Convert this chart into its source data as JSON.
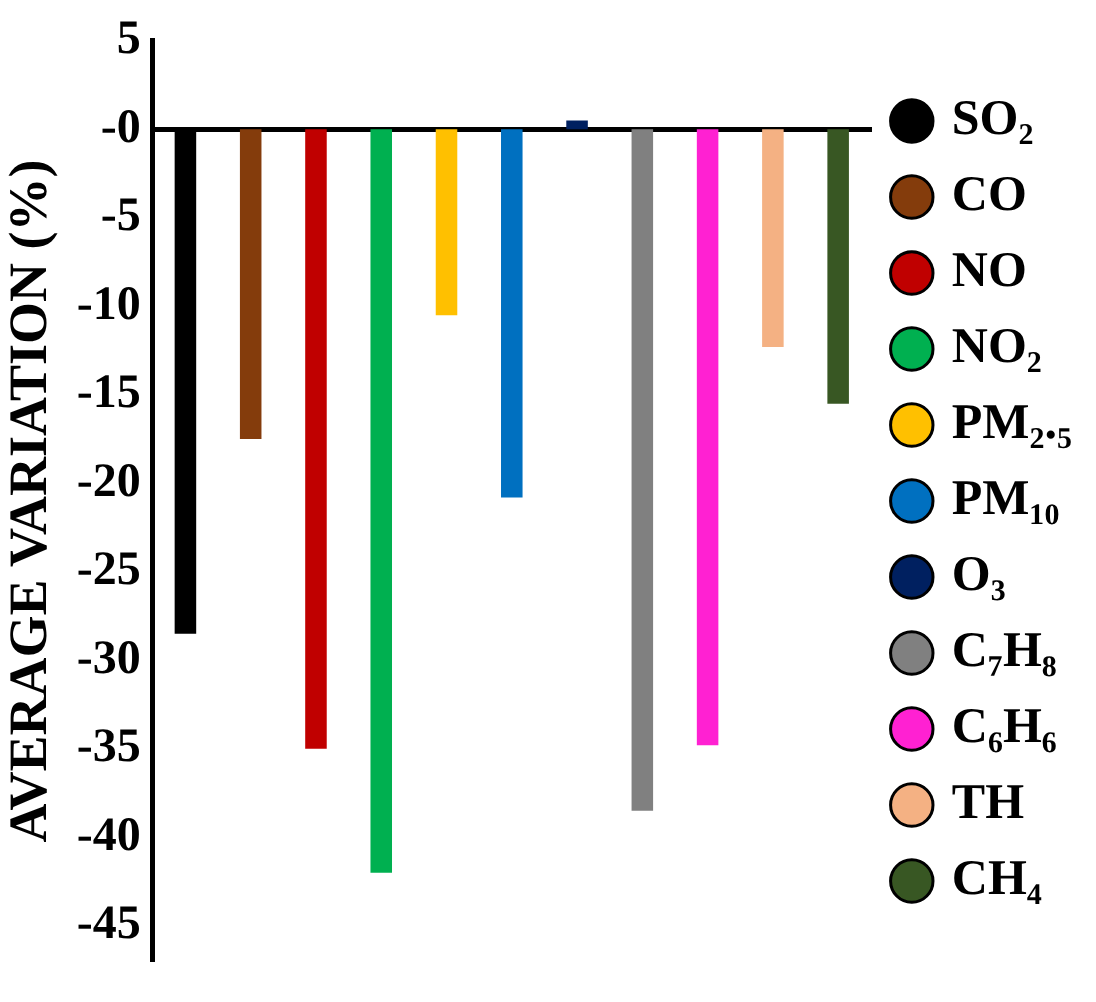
{
  "chart_data": {
    "type": "bar",
    "ylabel": "AVERAGE VARIATION (%)",
    "categories": [
      null
    ],
    "series": [
      {
        "name": "SO₂",
        "color": "#000000",
        "values": [
          -28.5
        ]
      },
      {
        "name": "CO",
        "color": "#843c0c",
        "values": [
          -17.5
        ]
      },
      {
        "name": "NO",
        "color": "#c00000",
        "values": [
          -35
        ]
      },
      {
        "name": "NO₂",
        "color": "#00b050",
        "values": [
          -42
        ]
      },
      {
        "name": "PM₂.₅",
        "color": "#ffc000",
        "values": [
          -10.5
        ]
      },
      {
        "name": "PM₁₀",
        "color": "#0070c0",
        "values": [
          -20.8
        ]
      },
      {
        "name": "O₃",
        "color": "#002060",
        "values": [
          0.5
        ]
      },
      {
        "name": "C₇H₈",
        "color": "#808080",
        "values": [
          -38.5
        ]
      },
      {
        "name": "C₆H₆",
        "color": "#ff21d2",
        "values": [
          -34.8
        ]
      },
      {
        "name": "TH",
        "color": "#f4b183",
        "values": [
          -12.3
        ]
      },
      {
        "name": "CH₄",
        "color": "#385723",
        "values": [
          -15.5
        ]
      }
    ],
    "ylim": [
      -47,
      5
    ],
    "yticks": [
      5,
      {
        "value": 0,
        "label": "-0"
      },
      -5,
      -10,
      -15,
      -20,
      -25,
      -30,
      -35,
      -40,
      -45
    ],
    "tick_labels": "y",
    "legend": "right"
  }
}
